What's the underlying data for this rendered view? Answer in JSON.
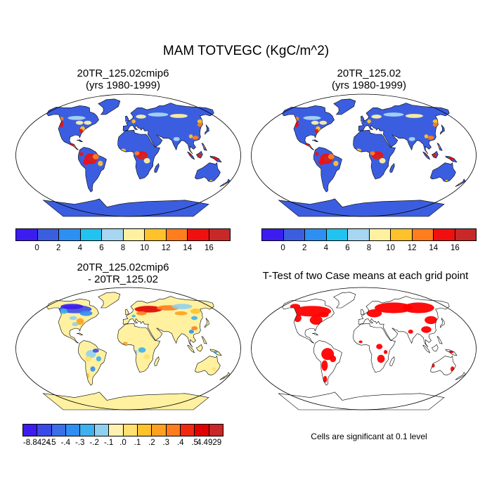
{
  "main_title": "MAM TOTVEGC (KgC/m^2)",
  "panels": [
    {
      "title_line1": "20TR_125.02cmip6",
      "title_line2": "(yrs 1980-1999)",
      "field": "absolute"
    },
    {
      "title_line1": "20TR_125.02",
      "title_line2": "(yrs 1980-1999)",
      "field": "absolute"
    },
    {
      "title_line1": "20TR_125.02cmip6",
      "title_line2": "- 20TR_125.02",
      "field": "difference"
    },
    {
      "title_line1": "T-Test of two Case means at each grid point",
      "title_line2": "",
      "field": "significance"
    }
  ],
  "colorbar_abs": {
    "colors": [
      "#3c1cf0",
      "#3b5ee0",
      "#2e8ff2",
      "#21c4f0",
      "#a6d6f0",
      "#fff1a0",
      "#ffc22a",
      "#ff7d1c",
      "#f01010",
      "#c82828"
    ],
    "labels": [
      "0",
      "2",
      "4",
      "6",
      "8",
      "10",
      "12",
      "14",
      "16"
    ]
  },
  "colorbar_diff": {
    "colors": [
      "#3c1cf0",
      "#3b49e8",
      "#3a6fe8",
      "#2f8ef2",
      "#3fb0f0",
      "#8fd0f0",
      "#fff2b0",
      "#ffe070",
      "#ffc22a",
      "#ffa020",
      "#ff7d1c",
      "#f02a10",
      "#e00000",
      "#c82828"
    ],
    "labels": [
      "-8.8424",
      "-.5",
      "-.4",
      "-.3",
      "-.2",
      "-.1",
      ".0",
      ".1",
      ".2",
      ".3",
      ".4",
      ".5",
      "4.4929"
    ]
  },
  "ttest_note": "Cells are significant at 0.1 level",
  "colors": {
    "ocean": "#ffffff",
    "land_default": "#3b5ee0",
    "diff_default": "#fff1a0",
    "significant": "#ff0000",
    "coast": "#000000"
  }
}
